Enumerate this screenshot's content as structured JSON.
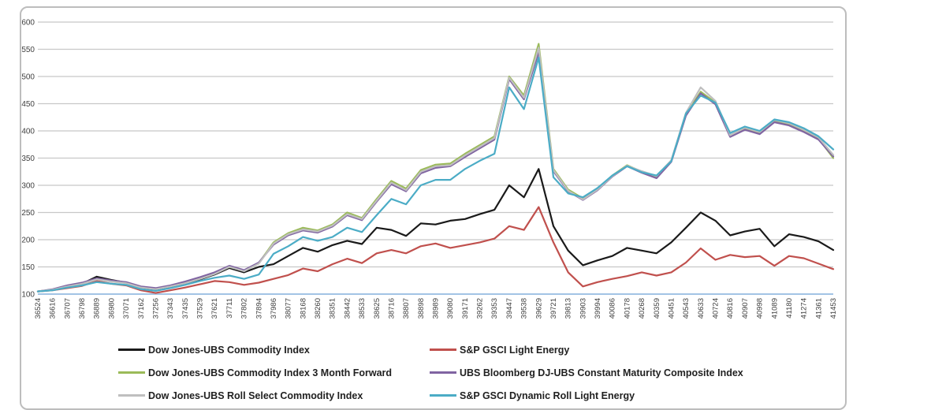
{
  "chart_data": {
    "type": "line",
    "title": "",
    "xlabel": "",
    "ylabel": "",
    "ylim": [
      100,
      600
    ],
    "y_ticks": [
      100,
      150,
      200,
      250,
      300,
      350,
      400,
      450,
      500,
      550,
      600
    ],
    "grid": true,
    "legend_position": "bottom-two-columns",
    "x_labels": [
      "36524",
      "36616",
      "36707",
      "36798",
      "36889",
      "36980",
      "37071",
      "37162",
      "37256",
      "37343",
      "37435",
      "37529",
      "37621",
      "37711",
      "37802",
      "37894",
      "37986",
      "38077",
      "38168",
      "38260",
      "38351",
      "38442",
      "38533",
      "38625",
      "38716",
      "38807",
      "38898",
      "38989",
      "39080",
      "39171",
      "39262",
      "39353",
      "39447",
      "39538",
      "39629",
      "39721",
      "39813",
      "39903",
      "39994",
      "40086",
      "40178",
      "40268",
      "40359",
      "40451",
      "40543",
      "40633",
      "40724",
      "40816",
      "40907",
      "40998",
      "41089",
      "41180",
      "41274",
      "41361",
      "41453"
    ],
    "series": [
      {
        "name": "Dow Jones-UBS Commodity Index",
        "color": "#1a1a1a",
        "values": [
          105,
          108,
          114,
          119,
          132,
          126,
          121,
          112,
          108,
          113,
          119,
          127,
          136,
          148,
          140,
          150,
          155,
          170,
          185,
          178,
          190,
          198,
          192,
          222,
          218,
          207,
          230,
          228,
          235,
          238,
          247,
          255,
          300,
          278,
          330,
          225,
          180,
          153,
          162,
          170,
          185,
          180,
          175,
          195,
          222,
          250,
          235,
          208,
          215,
          220,
          188,
          210,
          205,
          197,
          181
        ]
      },
      {
        "name": "S&P GSCI Light Energy",
        "color": "#c0504d",
        "values": [
          105,
          107,
          111,
          115,
          124,
          119,
          116,
          107,
          102,
          107,
          112,
          118,
          124,
          122,
          117,
          121,
          128,
          135,
          147,
          142,
          155,
          165,
          157,
          175,
          181,
          175,
          188,
          193,
          185,
          190,
          195,
          202,
          225,
          218,
          260,
          195,
          140,
          114,
          122,
          128,
          133,
          140,
          134,
          140,
          158,
          184,
          163,
          172,
          168,
          170,
          152,
          170,
          166,
          156,
          146
        ]
      },
      {
        "name": "Dow Jones-UBS Commodity Index 3 Month Forward",
        "color": "#9bbb59",
        "values": [
          105,
          108,
          115,
          120,
          128,
          124,
          121,
          113,
          110,
          115,
          121,
          129,
          139,
          150,
          143,
          157,
          195,
          212,
          222,
          217,
          228,
          250,
          240,
          275,
          308,
          294,
          328,
          338,
          340,
          358,
          374,
          390,
          500,
          465,
          560,
          330,
          292,
          276,
          293,
          318,
          337,
          325,
          315,
          345,
          430,
          472,
          452,
          390,
          404,
          396,
          418,
          412,
          400,
          386,
          350
        ]
      },
      {
        "name": "UBS Bloomberg DJ-UBS Constant Maturity Composite Index",
        "color": "#8064a2",
        "values": [
          105,
          109,
          116,
          121,
          129,
          125,
          122,
          114,
          111,
          116,
          123,
          131,
          140,
          152,
          144,
          158,
          191,
          208,
          217,
          213,
          224,
          245,
          236,
          270,
          302,
          289,
          322,
          332,
          335,
          352,
          368,
          384,
          495,
          458,
          545,
          326,
          289,
          273,
          291,
          316,
          335,
          323,
          313,
          343,
          428,
          469,
          449,
          389,
          402,
          394,
          416,
          410,
          398,
          384,
          353
        ]
      },
      {
        "name": "Dow Jones-UBS Roll Select Commodity Index",
        "color": "#bfbfbf",
        "values": [
          105,
          108,
          114,
          119,
          127,
          123,
          120,
          112,
          109,
          114,
          120,
          128,
          137,
          150,
          142,
          156,
          193,
          210,
          219,
          215,
          226,
          247,
          238,
          272,
          305,
          291,
          325,
          335,
          337,
          355,
          371,
          387,
          498,
          461,
          553,
          328,
          290,
          274,
          292,
          317,
          336,
          326,
          317,
          346,
          433,
          480,
          455,
          392,
          406,
          398,
          420,
          414,
          402,
          388,
          356
        ]
      },
      {
        "name": "S&P GSCI Dynamic Roll Light Energy",
        "color": "#4bacc6",
        "values": [
          105,
          107,
          112,
          116,
          122,
          119,
          117,
          109,
          106,
          111,
          117,
          124,
          130,
          134,
          128,
          136,
          174,
          188,
          205,
          198,
          205,
          222,
          214,
          245,
          275,
          265,
          300,
          310,
          310,
          330,
          345,
          358,
          480,
          440,
          535,
          315,
          285,
          278,
          295,
          318,
          335,
          324,
          318,
          344,
          432,
          465,
          452,
          396,
          408,
          400,
          421,
          416,
          405,
          390,
          366
        ]
      }
    ],
    "legend_columns": [
      [
        0,
        2,
        4
      ],
      [
        1,
        3,
        5
      ]
    ]
  },
  "style": {
    "grid_color": "#c8c8c8",
    "baseline_color": "#a3c4e5",
    "frame_border_color": "#bdbdbd",
    "tick_label_color": "#3f3f3f"
  }
}
